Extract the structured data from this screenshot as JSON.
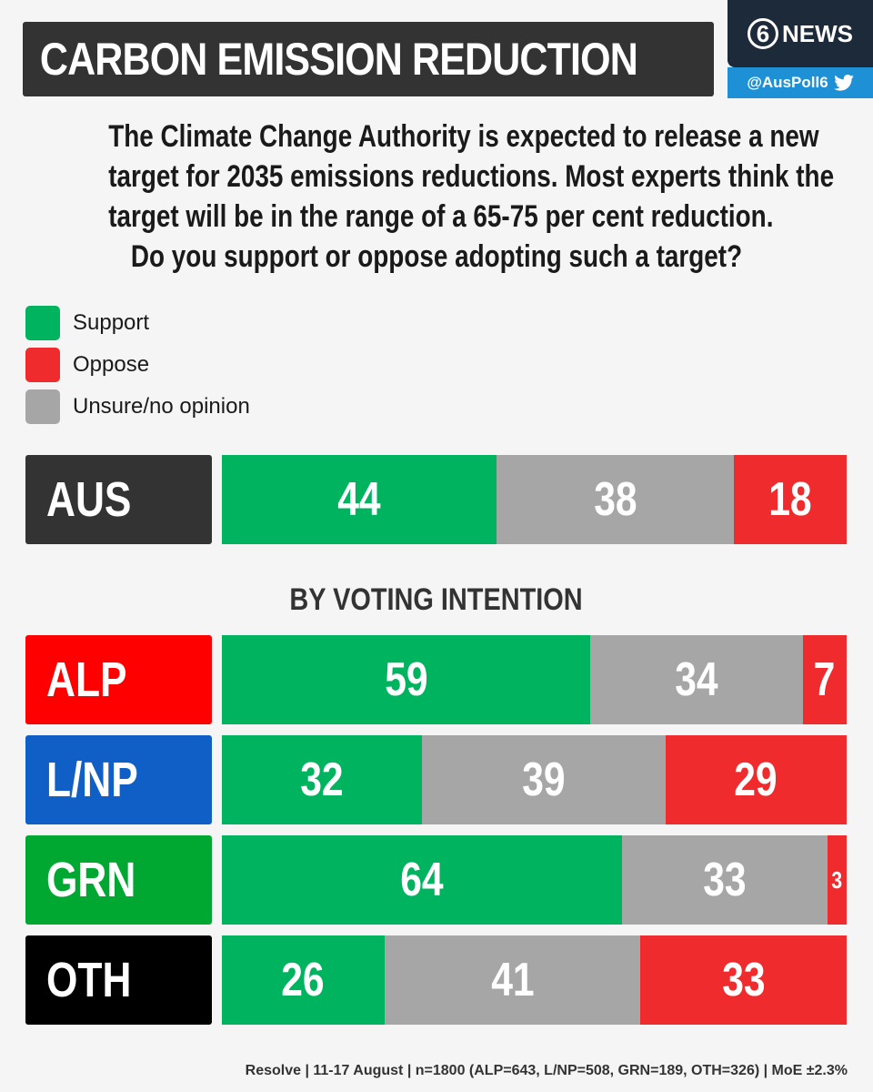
{
  "title": "CARBON EMISSION REDUCTION",
  "brand": {
    "number": "6",
    "name": "NEWS",
    "handle": "@AusPoll6",
    "icon": "twitter-bird-icon"
  },
  "question": [
    "The Climate Change Authority is expected to release a new",
    "target for 2035 emissions reductions. Most experts think the",
    "target will be in the range of a 65-75 per cent reduction.",
    "Do you support or oppose adopting such a target?"
  ],
  "legend": [
    {
      "label": "Support",
      "color": "#00b35f"
    },
    {
      "label": "Oppose",
      "color": "#ef2b2d"
    },
    {
      "label": "Unsure/no opinion",
      "color": "#a6a6a6"
    }
  ],
  "section_heading": "BY VOTING INTENTION",
  "footer": "Resolve | 11-17 August | n=1800 (ALP=643, L/NP=508, GRN=189, OTH=326) | MoE ±2.3%",
  "chart_data": {
    "type": "bar",
    "orientation": "horizontal",
    "stacked": true,
    "categories": [
      "AUS",
      "ALP",
      "L/NP",
      "GRN",
      "OTH"
    ],
    "category_colors": [
      "#333333",
      "#ff0000",
      "#0f5fc7",
      "#00a832",
      "#000000"
    ],
    "series": [
      {
        "name": "Support",
        "color": "#00b35f",
        "values": [
          44,
          59,
          32,
          64,
          26
        ]
      },
      {
        "name": "Unsure/no opinion",
        "color": "#a6a6a6",
        "values": [
          38,
          34,
          39,
          33,
          41
        ]
      },
      {
        "name": "Oppose",
        "color": "#ef2b2d",
        "values": [
          18,
          7,
          29,
          3,
          33
        ]
      }
    ],
    "xlim": [
      0,
      100
    ],
    "grid": false,
    "legend_position": "top-left"
  }
}
